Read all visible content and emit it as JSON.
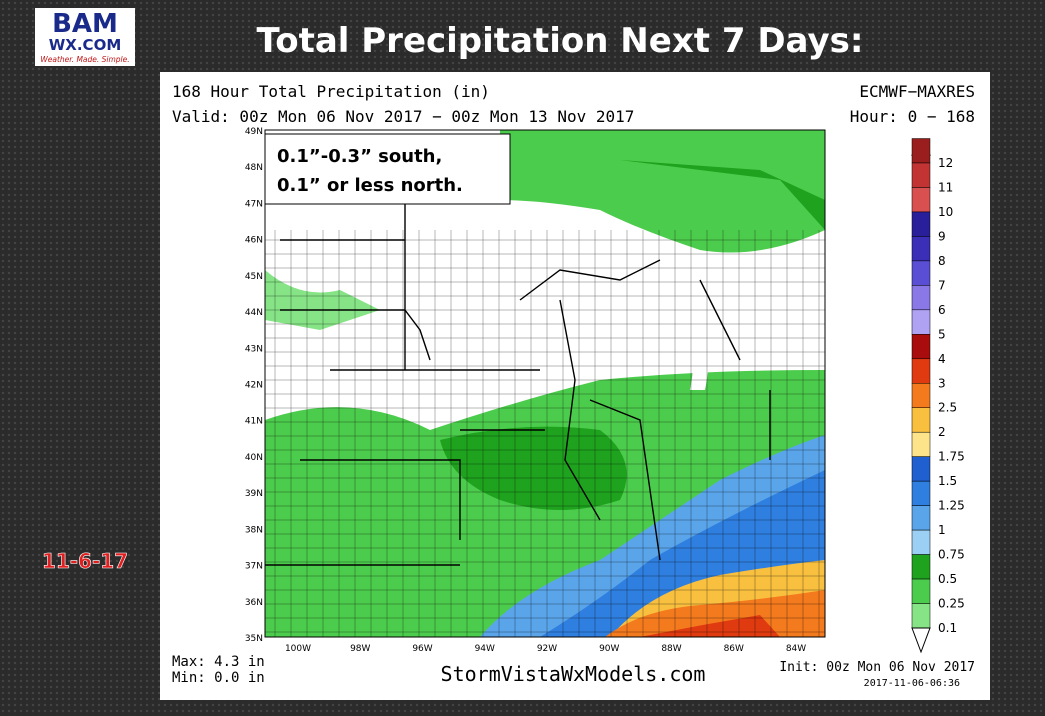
{
  "logo": {
    "name": "BAM",
    "site": "WX.COM",
    "tagline": "Weather. Made. Simple."
  },
  "title": "Total Precipitation Next 7 Days:",
  "date": "11-6-17",
  "map": {
    "header_left": "168 Hour Total Precipitation (in)",
    "header_right": "ECMWF−MAXRES",
    "valid": "Valid: 00z Mon 06 Nov 2017 − 00z Mon 13 Nov 2017",
    "hour": "Hour: 0 − 168",
    "annotation": [
      "0.1”-0.3” south,",
      "0.1” or less north."
    ],
    "lat_labels": [
      "49N",
      "48N",
      "47N",
      "46N",
      "45N",
      "44N",
      "43N",
      "42N",
      "41N",
      "40N",
      "39N",
      "38N",
      "37N",
      "36N",
      "35N"
    ],
    "lon_labels": [
      "100W",
      "98W",
      "96W",
      "94W",
      "92W",
      "90W",
      "88W",
      "86W",
      "84W"
    ],
    "legend": [
      {
        "label": "12",
        "color": "#9a1e1e"
      },
      {
        "label": "11",
        "color": "#c23434"
      },
      {
        "label": "10",
        "color": "#d85050"
      },
      {
        "label": "9",
        "color": "#2a1f9a"
      },
      {
        "label": "8",
        "color": "#3b2fb8"
      },
      {
        "label": "7",
        "color": "#5a4fd4"
      },
      {
        "label": "6",
        "color": "#8a78e6"
      },
      {
        "label": "5",
        "color": "#b0a2f2"
      },
      {
        "label": "4",
        "color": "#a80c0c"
      },
      {
        "label": "3",
        "color": "#e03a10"
      },
      {
        "label": "2.5",
        "color": "#f47a1e"
      },
      {
        "label": "2",
        "color": "#f9c040"
      },
      {
        "label": "1.75",
        "color": "#fde48a"
      },
      {
        "label": "1.5",
        "color": "#1f5fd0"
      },
      {
        "label": "1.25",
        "color": "#2f7fe0"
      },
      {
        "label": "1",
        "color": "#5aa5ea"
      },
      {
        "label": "0.75",
        "color": "#9ccff4"
      },
      {
        "label": "0.5",
        "color": "#1fa31f"
      },
      {
        "label": "0.25",
        "color": "#4ccc4c"
      },
      {
        "label": "0.1",
        "color": "#86e486"
      }
    ],
    "max": "Max: 4.3 in",
    "min": "Min: 0.0 in",
    "source": "StormVistaWxModels.com",
    "init": "Init: 00z Mon 06 Nov 2017",
    "timestamp": "2017-11-06-06:36"
  }
}
